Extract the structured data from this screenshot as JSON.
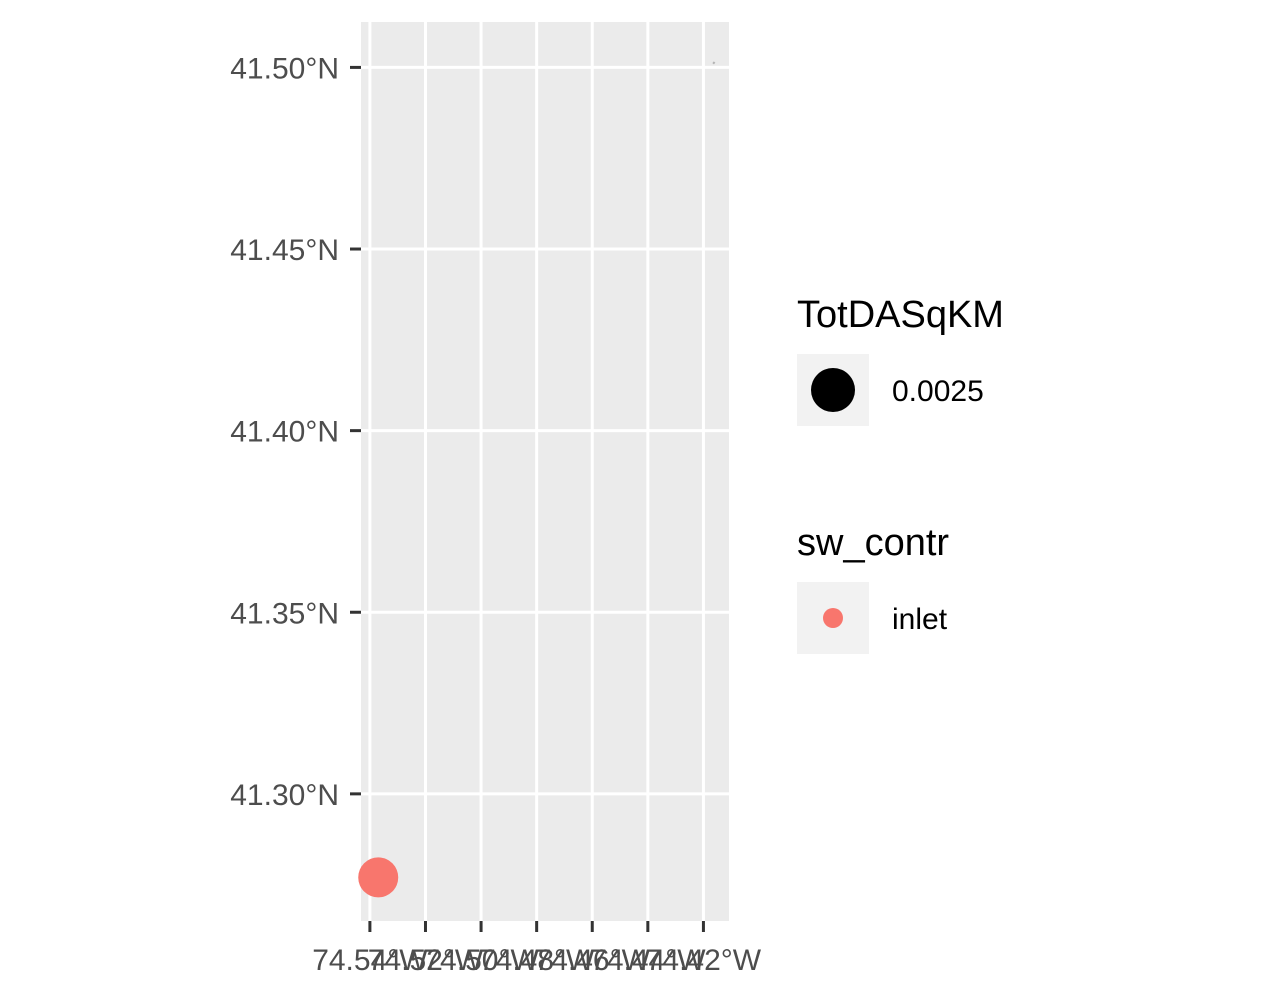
{
  "chart_data": {
    "type": "scatter",
    "title": "",
    "xlabel": "",
    "ylabel": "",
    "xlim": [
      -74.5432,
      -74.4108
    ],
    "ylim": [
      41.265,
      41.5125
    ],
    "x_ticks": [
      -74.54,
      -74.52,
      -74.5,
      -74.48,
      -74.46,
      -74.44,
      -74.42
    ],
    "x_tick_labels": [
      "74.54°W",
      "74.52°W",
      "74.50°W",
      "74.48°W",
      "74.46°W",
      "74.44°W",
      "74.42°W"
    ],
    "y_ticks": [
      41.3,
      41.35,
      41.4,
      41.45,
      41.5
    ],
    "y_tick_labels": [
      "41.30°N",
      "41.35°N",
      "41.40°N",
      "41.45°N",
      "41.50°N"
    ],
    "grid": true,
    "panel_background": "#ebebeb",
    "grid_color": "#ffffff",
    "series": [
      {
        "name": "inlet",
        "color": "#f8766d",
        "points": [
          {
            "x": -74.537,
            "y": 41.277,
            "size": 0.0025
          }
        ]
      }
    ],
    "features": [
      {
        "type": "line",
        "color": "#b3b3b3",
        "x": [
          -74.4165,
          -74.416
        ],
        "y": [
          41.501,
          41.5015
        ]
      }
    ],
    "legends": [
      {
        "title": "TotDASqKM",
        "type": "size",
        "entries": [
          {
            "label": "0.0025",
            "color": "#000000"
          }
        ]
      },
      {
        "title": "sw_contr",
        "type": "color",
        "entries": [
          {
            "label": "inlet",
            "color": "#f8766d"
          }
        ]
      }
    ],
    "legend_position": "right"
  }
}
